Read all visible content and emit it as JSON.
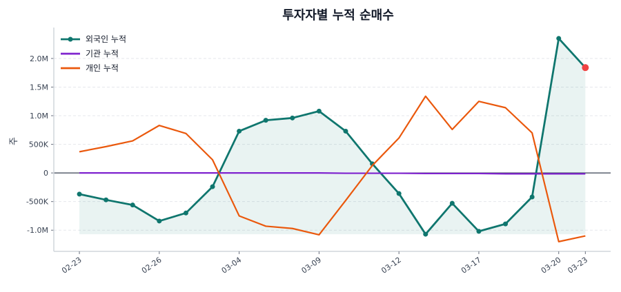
{
  "chart_data": {
    "type": "line",
    "title": "투자자별 누적 순매수",
    "xlabel": "",
    "ylabel": "주",
    "ylim": [
      -1370000,
      2540000
    ],
    "xlim_index": [
      -0.96,
      19.95
    ],
    "grid": "y dashed",
    "legend_position": "top-left",
    "x_ticks": [
      {
        "index": 0,
        "label": "02-23"
      },
      {
        "index": 3,
        "label": "02-26"
      },
      {
        "index": 6,
        "label": "03-04"
      },
      {
        "index": 9,
        "label": "03-09"
      },
      {
        "index": 12,
        "label": "03-12"
      },
      {
        "index": 15,
        "label": "03-17"
      },
      {
        "index": 18,
        "label": "03-20"
      },
      {
        "index": 19,
        "label": "03-23"
      }
    ],
    "y_ticks": [
      {
        "value": -1000000,
        "label": "-1.0M"
      },
      {
        "value": -500000,
        "label": "-500K"
      },
      {
        "value": 0,
        "label": "0"
      },
      {
        "value": 500000,
        "label": "500K"
      },
      {
        "value": 1000000,
        "label": "1.0M"
      },
      {
        "value": 1500000,
        "label": "1.5M"
      },
      {
        "value": 2000000,
        "label": "2.0M"
      }
    ],
    "series": [
      {
        "name": "외국인 누적",
        "color": "#0f766e",
        "markers": true,
        "fill": true,
        "last_marker_color": "#ef4444",
        "values": [
          -370000,
          -470000,
          -560000,
          -840000,
          -700000,
          -240000,
          730000,
          920000,
          960000,
          1080000,
          730000,
          160000,
          -360000,
          -1070000,
          -530000,
          -1020000,
          -890000,
          -420000,
          2350000,
          1840000
        ]
      },
      {
        "name": "기관 누적",
        "color": "#7e22ce",
        "markers": false,
        "values": [
          0,
          0,
          0,
          0,
          0,
          0,
          0,
          0,
          0,
          0,
          -5000,
          -5000,
          -5000,
          -10000,
          -10000,
          -10000,
          -15000,
          -15000,
          -15000,
          -15000
        ]
      },
      {
        "name": "개인 누적",
        "color": "#ea580c",
        "markers": false,
        "values": [
          370000,
          460000,
          560000,
          830000,
          690000,
          230000,
          -750000,
          -930000,
          -970000,
          -1080000,
          -480000,
          130000,
          610000,
          1340000,
          760000,
          1250000,
          1140000,
          700000,
          -1200000,
          -1100000
        ]
      }
    ]
  }
}
